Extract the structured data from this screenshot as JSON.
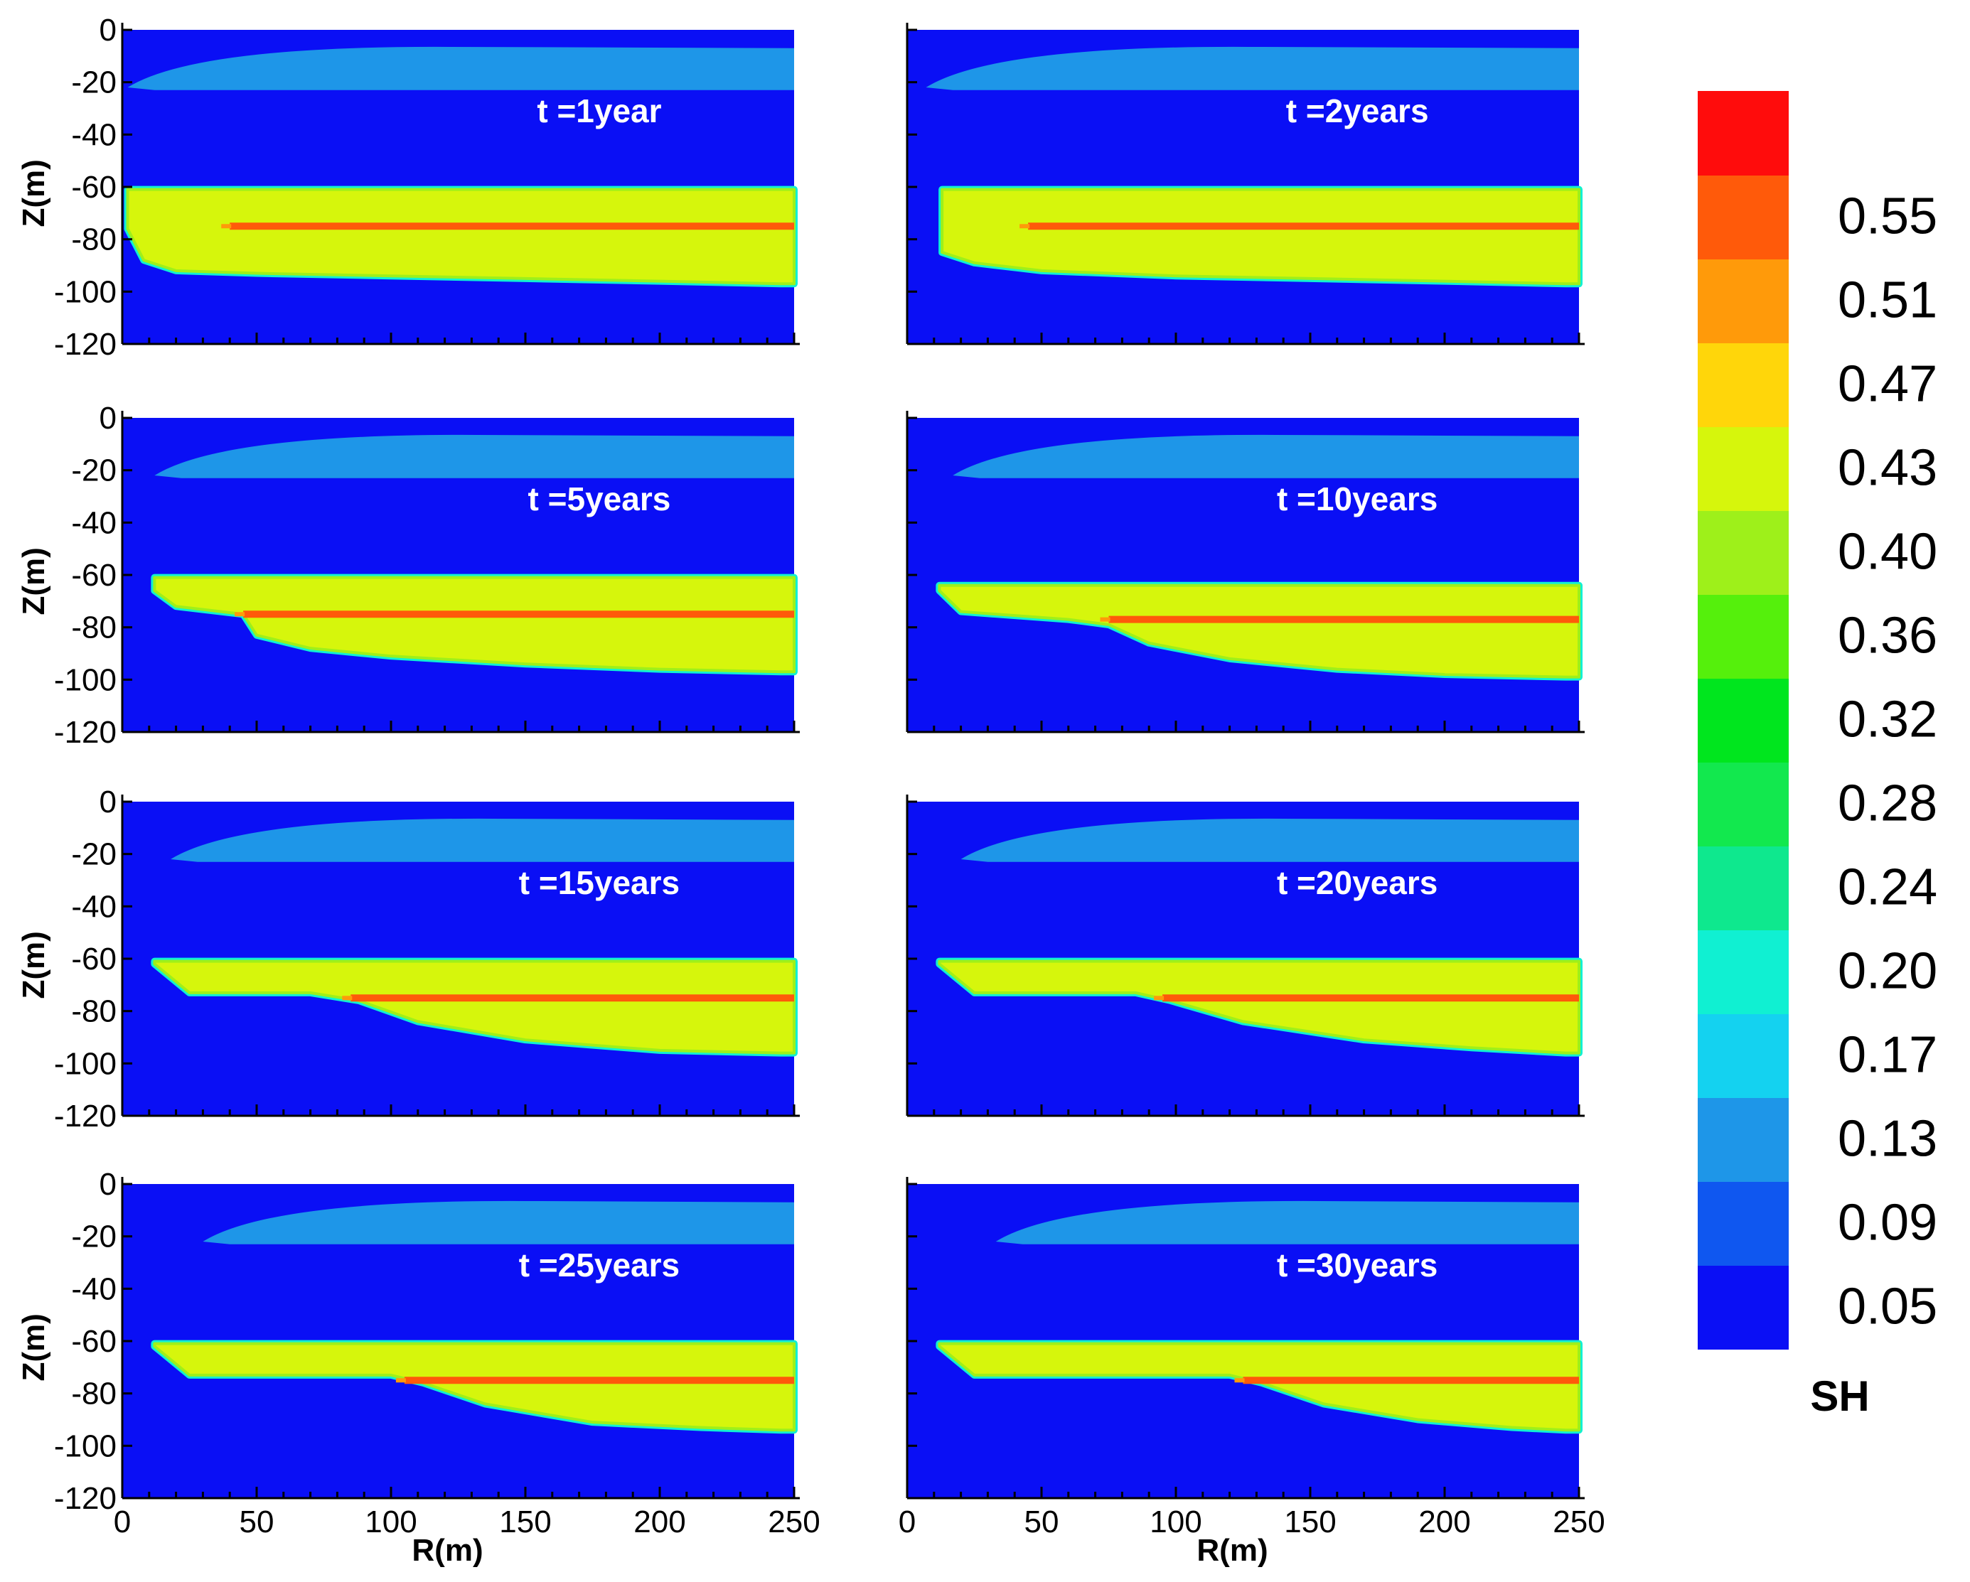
{
  "chart_data": {
    "type": "heatmap",
    "variable": "SH",
    "colorbar": {
      "title": "SH",
      "levels": [
        "0.05",
        "0.09",
        "0.13",
        "0.17",
        "0.20",
        "0.24",
        "0.28",
        "0.32",
        "0.36",
        "0.40",
        "0.43",
        "0.47",
        "0.51",
        "0.55"
      ],
      "colors": [
        "#0a0ff5",
        "#0f57f0",
        "#1e96e8",
        "#14d2f0",
        "#10f0d2",
        "#0ee88e",
        "#12e84e",
        "#00e61e",
        "#55f00c",
        "#9ef01a",
        "#d6f60c",
        "#ffd60a",
        "#ff9a0a",
        "#ff5a0a",
        "#ff0c0c"
      ]
    },
    "xlabel": "R(m)",
    "ylabel": "Z(m)",
    "xlim": [
      0,
      250
    ],
    "ylim": [
      -120,
      0
    ],
    "xticks": [
      "0",
      "50",
      "100",
      "150",
      "200",
      "250"
    ],
    "yticks": [
      "0",
      "-20",
      "-40",
      "-60",
      "-80",
      "-100",
      "-120"
    ],
    "background_level": "0.05",
    "upper_band": {
      "level": "0.13",
      "z_top": -7,
      "z_bottom": -23
    },
    "layer_level": "0.43",
    "thin_layer_level": "0.55",
    "panels": [
      {
        "label": "t =1year",
        "upper_tip_r": 2,
        "layer_top": -61,
        "red_z": -75,
        "red_start_r": 40,
        "profile": [
          [
            2,
            -76
          ],
          [
            8,
            -88
          ],
          [
            20,
            -92
          ],
          [
            50,
            -93
          ],
          [
            100,
            -94
          ],
          [
            150,
            -95
          ],
          [
            200,
            -96
          ],
          [
            245,
            -97
          ]
        ]
      },
      {
        "label": "t =2years",
        "upper_tip_r": 7,
        "layer_top": -61,
        "red_z": -75,
        "red_start_r": 45,
        "profile": [
          [
            13,
            -85
          ],
          [
            25,
            -89
          ],
          [
            50,
            -92
          ],
          [
            100,
            -94
          ],
          [
            150,
            -95
          ],
          [
            200,
            -96
          ],
          [
            245,
            -97
          ]
        ]
      },
      {
        "label": "t =5years",
        "upper_tip_r": 12,
        "layer_top": -61,
        "red_z": -75,
        "red_start_r": 45,
        "profile": [
          [
            12,
            -66
          ],
          [
            20,
            -72
          ],
          [
            45,
            -75
          ],
          [
            50,
            -83
          ],
          [
            70,
            -88
          ],
          [
            100,
            -91
          ],
          [
            150,
            -94
          ],
          [
            200,
            -96
          ],
          [
            245,
            -97
          ]
        ]
      },
      {
        "label": "t =10years",
        "upper_tip_r": 17,
        "layer_top": -64,
        "red_z": -77,
        "red_start_r": 75,
        "profile": [
          [
            12,
            -66
          ],
          [
            20,
            -74
          ],
          [
            60,
            -77
          ],
          [
            75,
            -79
          ],
          [
            90,
            -86
          ],
          [
            120,
            -92
          ],
          [
            160,
            -96
          ],
          [
            200,
            -98
          ],
          [
            245,
            -99
          ]
        ]
      },
      {
        "label": "t =15years",
        "upper_tip_r": 18,
        "layer_top": -61,
        "red_z": -75,
        "red_start_r": 85,
        "profile": [
          [
            12,
            -62
          ],
          [
            25,
            -73
          ],
          [
            70,
            -73
          ],
          [
            88,
            -76
          ],
          [
            110,
            -84
          ],
          [
            150,
            -91
          ],
          [
            200,
            -95
          ],
          [
            245,
            -96
          ]
        ]
      },
      {
        "label": "t =20years",
        "upper_tip_r": 20,
        "layer_top": -61,
        "red_z": -75,
        "red_start_r": 95,
        "profile": [
          [
            12,
            -62
          ],
          [
            25,
            -73
          ],
          [
            85,
            -73
          ],
          [
            98,
            -76
          ],
          [
            125,
            -84
          ],
          [
            170,
            -91
          ],
          [
            210,
            -94
          ],
          [
            245,
            -96
          ]
        ]
      },
      {
        "label": "t =25years",
        "upper_tip_r": 30,
        "layer_top": -61,
        "red_z": -75,
        "red_start_r": 105,
        "profile": [
          [
            12,
            -62
          ],
          [
            25,
            -73
          ],
          [
            100,
            -73
          ],
          [
            112,
            -76
          ],
          [
            135,
            -84
          ],
          [
            175,
            -91
          ],
          [
            215,
            -93
          ],
          [
            245,
            -94
          ]
        ]
      },
      {
        "label": "t =30years",
        "upper_tip_r": 33,
        "layer_top": -61,
        "red_z": -75,
        "red_start_r": 125,
        "profile": [
          [
            12,
            -62
          ],
          [
            25,
            -73
          ],
          [
            120,
            -73
          ],
          [
            132,
            -76
          ],
          [
            155,
            -84
          ],
          [
            190,
            -90
          ],
          [
            225,
            -93
          ],
          [
            245,
            -94
          ]
        ]
      }
    ]
  }
}
